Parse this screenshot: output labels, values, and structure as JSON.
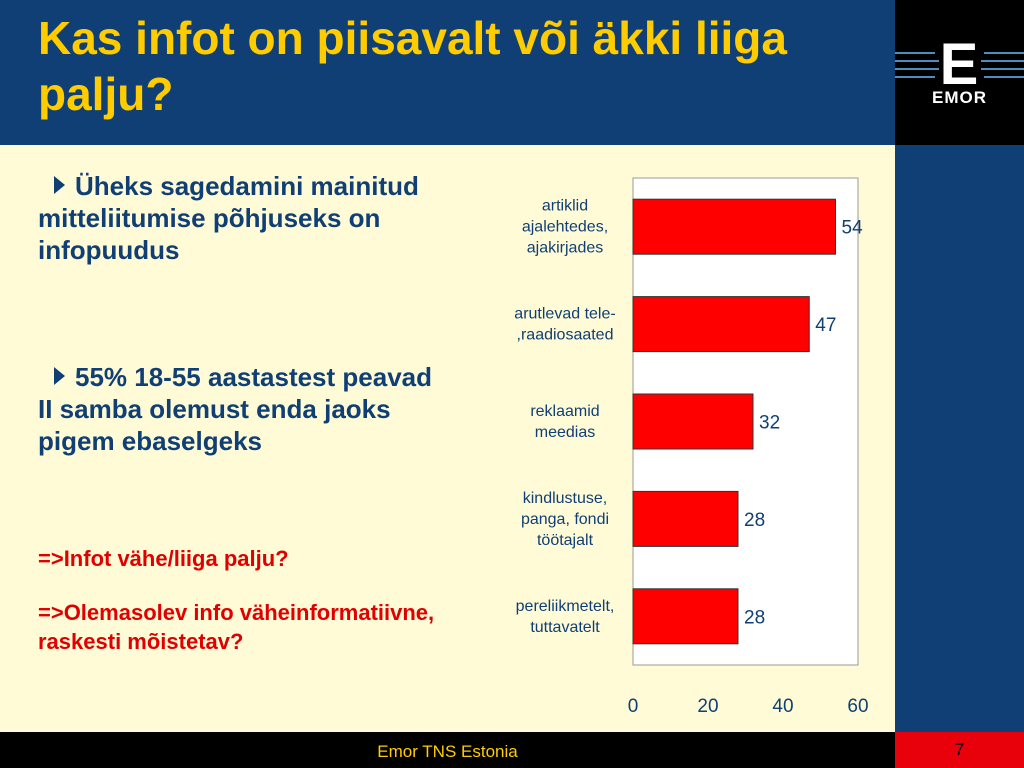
{
  "title": "Kas infot on piisavalt või äkki liiga palju?",
  "logo": {
    "letter": "E",
    "name": "EMOR"
  },
  "bullets": [
    "Üheks sagedamini mainitud mitteliitumise põhjuseks on infopuudus",
    "55% 18-55 aastastest peavad II samba olemust enda jaoks pigem ebaselgeks"
  ],
  "notes": [
    "=>Infot vähe/liiga palju?",
    "=>Olemasolev info väheinformatiivne, raskesti mõistetav?"
  ],
  "footer": {
    "company": "Emor TNS Estonia",
    "page": "7"
  },
  "colors": {
    "header_bg": "#0f3f74",
    "title": "#ffcc00",
    "bar": "#ff0000",
    "note": "#e00000",
    "slide_bg": "#fffbd6"
  },
  "chart_data": {
    "type": "bar",
    "orientation": "horizontal",
    "categories": [
      [
        "artiklid",
        "ajalehtedes,",
        "ajakirjades"
      ],
      [
        "arutlevad tele-",
        ",raadiosaated"
      ],
      [
        "reklaamid",
        "meedias"
      ],
      [
        "kindlustuse,",
        "panga, fondi",
        "töötajalt"
      ],
      [
        "pereliikmetelt,",
        "tuttavatelt"
      ]
    ],
    "values": [
      54,
      47,
      32,
      28,
      28
    ],
    "xlim": [
      0,
      60
    ],
    "xticks": [
      0,
      20,
      40,
      60
    ],
    "grid": false,
    "legend": "none"
  }
}
